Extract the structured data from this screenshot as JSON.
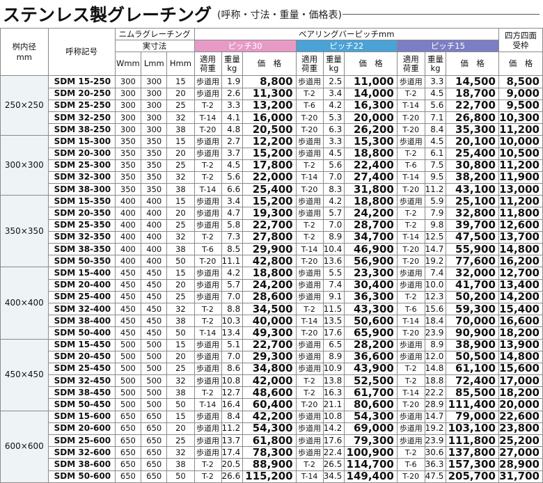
{
  "title": "ステンレス製グレーチング",
  "subtitle": "(呼称・寸法・重量・価格表)",
  "headers": {
    "inner_size": "桝内径\nmm",
    "name": "呼称記号",
    "nimura": "ニムラグレーチング",
    "actual": "実寸法",
    "W": "Wmm",
    "L": "Lmm",
    "H": "Hmm",
    "bearing": "ベアリングバーピッチmm",
    "pitch30": "ピッチ30",
    "pitch22": "ピッチ22",
    "pitch15": "ピッチ15",
    "load": "適用\n荷重",
    "weight": "重量\nkg",
    "price": "価　格",
    "shihou": "四方四面\n受枠",
    "shihou_price": "価　格"
  },
  "groups": [
    {
      "size": "250×250",
      "rows": [
        {
          "name": "SDM 15-250",
          "W": "300",
          "L": "300",
          "H": "15",
          "l30": "歩道用",
          "w30": "1.9",
          "p30": "8,800",
          "l22": "歩道用",
          "w22": "2.5",
          "p22": "11,000",
          "l15": "歩道用",
          "w15": "3.3",
          "p15": "14,500",
          "frame": "8,500"
        },
        {
          "name": "SDM 20-250",
          "W": "300",
          "L": "300",
          "H": "20",
          "l30": "歩道用",
          "w30": "2.6",
          "p30": "11,300",
          "l22": "T-2",
          "w22": "3.4",
          "p22": "14,000",
          "l15": "T-2",
          "w15": "4.5",
          "p15": "18,700",
          "frame": "9,000"
        },
        {
          "name": "SDM 25-250",
          "W": "300",
          "L": "300",
          "H": "25",
          "l30": "T-2",
          "w30": "3.3",
          "p30": "13,200",
          "l22": "T-6",
          "w22": "4.2",
          "p22": "16,300",
          "l15": "T-14",
          "w15": "5.6",
          "p15": "22,700",
          "frame": "9,500"
        },
        {
          "name": "SDM 32-250",
          "W": "300",
          "L": "300",
          "H": "32",
          "l30": "T-14",
          "w30": "4.1",
          "p30": "16,000",
          "l22": "T-20",
          "w22": "5.3",
          "p22": "20,000",
          "l15": "T-20",
          "w15": "7.1",
          "p15": "26,800",
          "frame": "10,300"
        },
        {
          "name": "SDM 38-250",
          "W": "300",
          "L": "300",
          "H": "38",
          "l30": "T-20",
          "w30": "4.8",
          "p30": "20,500",
          "l22": "T-20",
          "w22": "6.3",
          "p22": "26,200",
          "l15": "T-20",
          "w15": "8.4",
          "p15": "35,300",
          "frame": "11,200"
        }
      ]
    },
    {
      "size": "300×300",
      "rows": [
        {
          "name": "SDM 15-300",
          "W": "350",
          "L": "350",
          "H": "15",
          "l30": "歩道用",
          "w30": "2.7",
          "p30": "12,200",
          "l22": "歩道用",
          "w22": "3.3",
          "p22": "15,300",
          "l15": "歩道用",
          "w15": "4.5",
          "p15": "20,100",
          "frame": "10,000"
        },
        {
          "name": "SDM 20-300",
          "W": "350",
          "L": "350",
          "H": "20",
          "l30": "歩道用",
          "w30": "3.7",
          "p30": "15,200",
          "l22": "歩道用",
          "w22": "4.5",
          "p22": "18,800",
          "l15": "T-2",
          "w15": "6.1",
          "p15": "25,400",
          "frame": "10,500"
        },
        {
          "name": "SDM 25-300",
          "W": "350",
          "L": "350",
          "H": "25",
          "l30": "T-2",
          "w30": "4.5",
          "p30": "17,800",
          "l22": "T-2",
          "w22": "5.6",
          "p22": "22,400",
          "l15": "T-6",
          "w15": "7.5",
          "p15": "30,800",
          "frame": "11,200"
        },
        {
          "name": "SDM 32-300",
          "W": "350",
          "L": "350",
          "H": "32",
          "l30": "T-2",
          "w30": "5.6",
          "p30": "22,000",
          "l22": "T-14",
          "w22": "7.0",
          "p22": "27,400",
          "l15": "T-14",
          "w15": "9.5",
          "p15": "38,200",
          "frame": "11,900"
        },
        {
          "name": "SDM 38-300",
          "W": "350",
          "L": "350",
          "H": "38",
          "l30": "T-14",
          "w30": "6.6",
          "p30": "25,400",
          "l22": "T-20",
          "w22": "8.3",
          "p22": "31,800",
          "l15": "T-20",
          "w15": "11.2",
          "p15": "43,100",
          "frame": "13,000"
        }
      ]
    },
    {
      "size": "350×350",
      "rows": [
        {
          "name": "SDM 15-350",
          "W": "400",
          "L": "400",
          "H": "15",
          "l30": "歩道用",
          "w30": "3.4",
          "p30": "15,200",
          "l22": "歩道用",
          "w22": "4.2",
          "p22": "18,800",
          "l15": "歩道用",
          "w15": "5.9",
          "p15": "25,100",
          "frame": "11,200"
        },
        {
          "name": "SDM 20-350",
          "W": "400",
          "L": "400",
          "H": "20",
          "l30": "歩道用",
          "w30": "4.7",
          "p30": "19,300",
          "l22": "歩道用",
          "w22": "5.7",
          "p22": "24,200",
          "l15": "T-2",
          "w15": "7.9",
          "p15": "32,800",
          "frame": "11,800"
        },
        {
          "name": "SDM 25-350",
          "W": "400",
          "L": "400",
          "H": "25",
          "l30": "歩道用",
          "w30": "5.8",
          "p30": "22,700",
          "l22": "T-2",
          "w22": "7.0",
          "p22": "28,700",
          "l15": "T-2",
          "w15": "9.8",
          "p15": "39,700",
          "frame": "12,600"
        },
        {
          "name": "SDM 32-350",
          "W": "400",
          "L": "400",
          "H": "32",
          "l30": "T-2",
          "w30": "7.3",
          "p30": "27,800",
          "l22": "T-2",
          "w22": "8.9",
          "p22": "34,700",
          "l15": "T-14",
          "w15": "12.5",
          "p15": "47,500",
          "frame": "13,700"
        },
        {
          "name": "SDM 38-350",
          "W": "400",
          "L": "400",
          "H": "38",
          "l30": "T-6",
          "w30": "8.5",
          "p30": "29,900",
          "l22": "T-14",
          "w22": "10.4",
          "p22": "46,900",
          "l15": "T-20",
          "w15": "14.7",
          "p15": "55,900",
          "frame": "14,800"
        },
        {
          "name": "SDM 50-350",
          "W": "400",
          "L": "400",
          "H": "50",
          "l30": "T-20",
          "w30": "11.1",
          "p30": "42,800",
          "l22": "T-20",
          "w22": "13.6",
          "p22": "56,900",
          "l15": "T-20",
          "w15": "19.2",
          "p15": "77,600",
          "frame": "16,200"
        }
      ]
    },
    {
      "size": "400×400",
      "rows": [
        {
          "name": "SDM 15-400",
          "W": "450",
          "L": "450",
          "H": "15",
          "l30": "歩道用",
          "w30": "4.2",
          "p30": "18,800",
          "l22": "歩道用",
          "w22": "5.5",
          "p22": "23,300",
          "l15": "歩道用",
          "w15": "7.4",
          "p15": "32,000",
          "frame": "12,700"
        },
        {
          "name": "SDM 20-400",
          "W": "450",
          "L": "450",
          "H": "20",
          "l30": "歩道用",
          "w30": "5.7",
          "p30": "24,200",
          "l22": "歩道用",
          "w22": "7.4",
          "p22": "30,400",
          "l15": "歩道用",
          "w15": "10.0",
          "p15": "41,700",
          "frame": "13,400"
        },
        {
          "name": "SDM 25-400",
          "W": "450",
          "L": "450",
          "H": "25",
          "l30": "歩道用",
          "w30": "7.0",
          "p30": "28,600",
          "l22": "歩道用",
          "w22": "9.1",
          "p22": "36,300",
          "l15": "T-2",
          "w15": "12.3",
          "p15": "50,200",
          "frame": "14,200"
        },
        {
          "name": "SDM 32-400",
          "W": "450",
          "L": "450",
          "H": "32",
          "l30": "T-2",
          "w30": "8.8",
          "p30": "34,500",
          "l22": "T-2",
          "w22": "11.5",
          "p22": "43,300",
          "l15": "T-6",
          "w15": "15.6",
          "p15": "59,300",
          "frame": "15,400"
        },
        {
          "name": "SDM 38-400",
          "W": "450",
          "L": "450",
          "H": "38",
          "l30": "T-2",
          "w30": "10.3",
          "p30": "40,000",
          "l22": "T-14",
          "w22": "13.5",
          "p22": "50,600",
          "l15": "T-14",
          "w15": "18.4",
          "p15": "70,000",
          "frame": "16,600"
        },
        {
          "name": "SDM 50-400",
          "W": "450",
          "L": "450",
          "H": "50",
          "l30": "T-14",
          "w30": "13.4",
          "p30": "49,300",
          "l22": "T-20",
          "w22": "17.6",
          "p22": "65,900",
          "l15": "T-20",
          "w15": "23.9",
          "p15": "90,900",
          "frame": "18,200"
        }
      ]
    },
    {
      "size": "450×450",
      "rows": [
        {
          "name": "SDM 15-450",
          "W": "500",
          "L": "500",
          "H": "15",
          "l30": "歩道用",
          "w30": "5.1",
          "p30": "22,700",
          "l22": "歩道用",
          "w22": "6.5",
          "p22": "28,200",
          "l15": "歩道用",
          "w15": "8.9",
          "p15": "38,900",
          "frame": "13,900"
        },
        {
          "name": "SDM 20-450",
          "W": "500",
          "L": "500",
          "H": "20",
          "l30": "歩道用",
          "w30": "7.0",
          "p30": "29,300",
          "l22": "歩道用",
          "w22": "8.9",
          "p22": "36,600",
          "l15": "歩道用",
          "w15": "12.0",
          "p15": "50,500",
          "frame": "14,800"
        },
        {
          "name": "SDM 25-450",
          "W": "500",
          "L": "500",
          "H": "25",
          "l30": "歩道用",
          "w30": "8.6",
          "p30": "34,800",
          "l22": "歩道用",
          "w22": "10.9",
          "p22": "43,900",
          "l15": "T-2",
          "w15": "14.8",
          "p15": "61,100",
          "frame": "15,600"
        },
        {
          "name": "SDM 32-450",
          "W": "500",
          "L": "500",
          "H": "32",
          "l30": "歩道用",
          "w30": "10.8",
          "p30": "42,000",
          "l22": "T-2",
          "w22": "13.8",
          "p22": "52,500",
          "l15": "T-2",
          "w15": "18.8",
          "p15": "72,400",
          "frame": "17,000"
        },
        {
          "name": "SDM 38-450",
          "W": "500",
          "L": "500",
          "H": "38",
          "l30": "T-2",
          "w30": "12.7",
          "p30": "48,600",
          "l22": "T-2",
          "w22": "16.3",
          "p22": "61,700",
          "l15": "T-14",
          "w15": "22.2",
          "p15": "85,500",
          "frame": "18,200"
        },
        {
          "name": "SDM 50-450",
          "W": "500",
          "L": "500",
          "H": "50",
          "l30": "T-14",
          "w30": "16.4",
          "p30": "60,400",
          "l22": "T-20",
          "w22": "21.1",
          "p22": "80,600",
          "l15": "T-20",
          "w15": "28.9",
          "p15": "111,400",
          "frame": "20,000"
        }
      ]
    },
    {
      "size": "600×600",
      "rows": [
        {
          "name": "SDM 15-600",
          "W": "650",
          "L": "650",
          "H": "15",
          "l30": "歩道用",
          "w30": "8.4",
          "p30": "42,200",
          "l22": "歩道用",
          "w22": "10.8",
          "p22": "54,300",
          "l15": "歩道用",
          "w15": "14.7",
          "p15": "79,000",
          "frame": "22,600"
        },
        {
          "name": "SDM 20-600",
          "W": "650",
          "L": "650",
          "H": "20",
          "l30": "歩道用",
          "w30": "11.2",
          "p30": "54,300",
          "l22": "歩道用",
          "w22": "14.2",
          "p22": "69,000",
          "l15": "歩道用",
          "w15": "19.2",
          "p15": "103,100",
          "frame": "23,800"
        },
        {
          "name": "SDM 25-600",
          "W": "650",
          "L": "650",
          "H": "25",
          "l30": "歩道用",
          "w30": "13.7",
          "p30": "61,800",
          "l22": "歩道用",
          "w22": "17.6",
          "p22": "79,300",
          "l15": "歩道用",
          "w15": "23.9",
          "p15": "111,800",
          "frame": "25,200"
        },
        {
          "name": "SDM 32-600",
          "W": "650",
          "L": "650",
          "H": "32",
          "l30": "歩道用",
          "w30": "17.4",
          "p30": "78,300",
          "l22": "歩道用",
          "w22": "22.4",
          "p22": "100,900",
          "l15": "T-2",
          "w15": "30.6",
          "p15": "137,800",
          "frame": "27,000"
        },
        {
          "name": "SDM 38-600",
          "W": "650",
          "L": "650",
          "H": "38",
          "l30": "T-2",
          "w30": "20.5",
          "p30": "88,900",
          "l22": "T-2",
          "w22": "26.5",
          "p22": "114,700",
          "l15": "T-6",
          "w15": "36.3",
          "p15": "157,300",
          "frame": "28,900"
        },
        {
          "name": "SDM 50-600",
          "W": "650",
          "L": "650",
          "H": "50",
          "l30": "T-2",
          "w30": "26.6",
          "p30": "115,200",
          "l22": "T-14",
          "w22": "34.5",
          "p22": "149,400",
          "l15": "T-20",
          "w15": "47.5",
          "p15": "205,700",
          "frame": "31,700"
        }
      ]
    }
  ]
}
